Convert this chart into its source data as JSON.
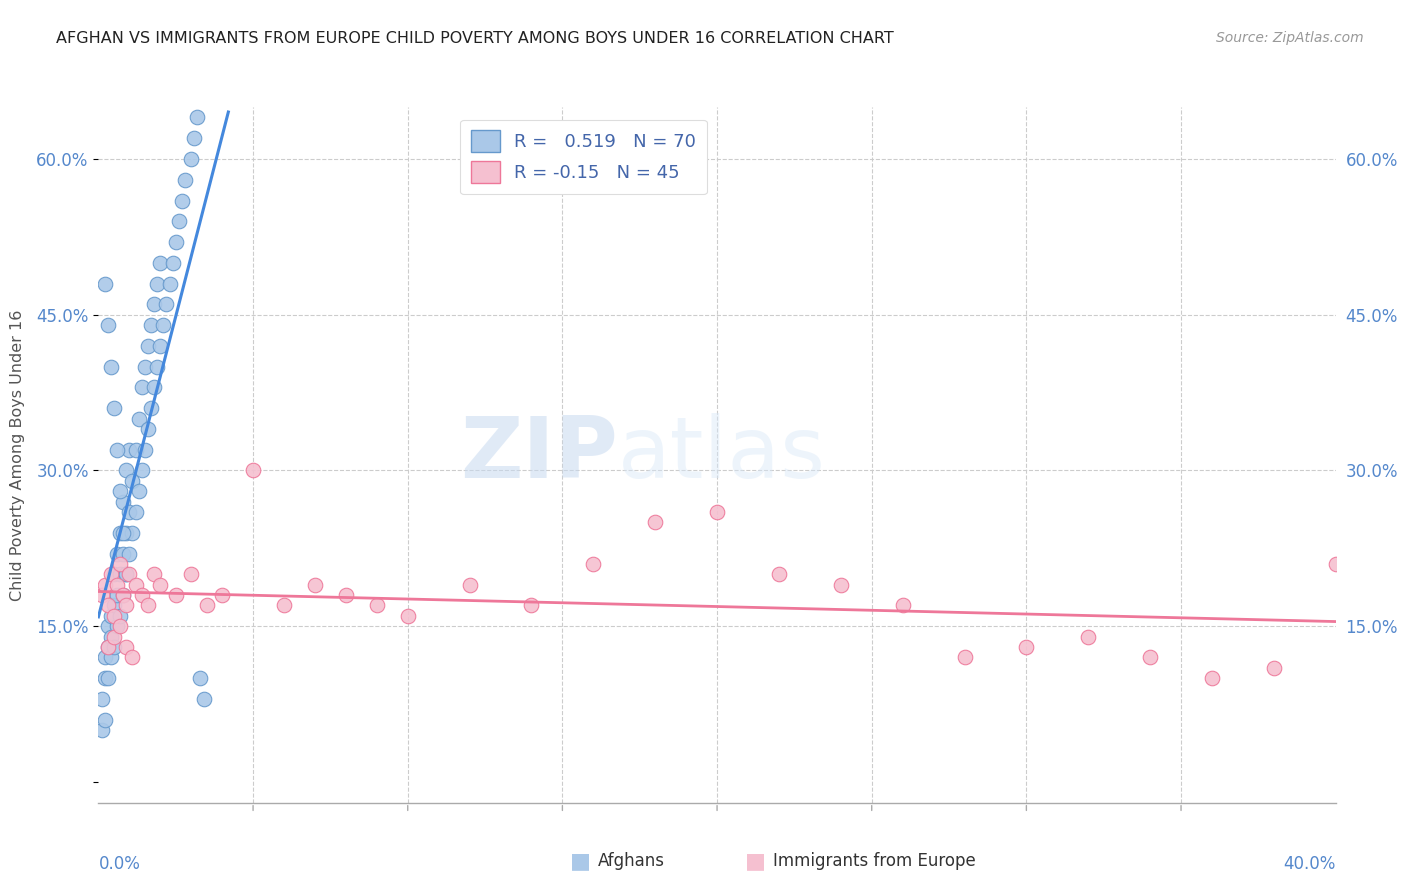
{
  "title": "Afghan vs Immigrants from Europe Child Poverty Among Boys Under 16 Correlation Chart",
  "title_display": "AFGHAN VS IMMIGRANTS FROM EUROPE CHILD POVERTY AMONG BOYS UNDER 16 CORRELATION CHART",
  "source": "Source: ZipAtlas.com",
  "ylabel": "Child Poverty Among Boys Under 16",
  "xlim": [
    0.0,
    0.4
  ],
  "ylim": [
    -0.02,
    0.65
  ],
  "yticks": [
    0.0,
    0.15,
    0.3,
    0.45,
    0.6
  ],
  "ytick_labels": [
    "",
    "15.0%",
    "30.0%",
    "45.0%",
    "60.0%"
  ],
  "xtick_left": "0.0%",
  "xtick_right": "40.0%",
  "afghans_color": "#aac8e8",
  "afghans_edge_color": "#6699cc",
  "europe_color": "#f5c0d0",
  "europe_edge_color": "#ee7799",
  "trend_afghan_color": "#4488dd",
  "trend_europe_color": "#ee7799",
  "label_color": "#5588cc",
  "R_afghan": 0.519,
  "N_afghan": 70,
  "R_europe": -0.15,
  "N_europe": 45,
  "legend_labels": [
    "Afghans",
    "Immigrants from Europe"
  ],
  "watermark_zip": "ZIP",
  "watermark_atlas": "atlas",
  "afghans_x": [
    0.001,
    0.002,
    0.002,
    0.003,
    0.003,
    0.003,
    0.004,
    0.004,
    0.004,
    0.005,
    0.005,
    0.005,
    0.006,
    0.006,
    0.006,
    0.007,
    0.007,
    0.007,
    0.008,
    0.008,
    0.008,
    0.009,
    0.009,
    0.009,
    0.01,
    0.01,
    0.01,
    0.011,
    0.011,
    0.012,
    0.012,
    0.013,
    0.013,
    0.014,
    0.014,
    0.015,
    0.015,
    0.016,
    0.016,
    0.017,
    0.017,
    0.018,
    0.018,
    0.019,
    0.019,
    0.02,
    0.02,
    0.021,
    0.022,
    0.023,
    0.024,
    0.025,
    0.026,
    0.027,
    0.028,
    0.03,
    0.031,
    0.032,
    0.033,
    0.034,
    0.002,
    0.003,
    0.004,
    0.005,
    0.006,
    0.007,
    0.008,
    0.009,
    0.001,
    0.002
  ],
  "afghans_y": [
    0.08,
    0.1,
    0.12,
    0.1,
    0.13,
    0.15,
    0.12,
    0.14,
    0.16,
    0.13,
    0.17,
    0.2,
    0.15,
    0.18,
    0.22,
    0.16,
    0.2,
    0.24,
    0.18,
    0.22,
    0.27,
    0.2,
    0.24,
    0.3,
    0.22,
    0.26,
    0.32,
    0.24,
    0.29,
    0.26,
    0.32,
    0.28,
    0.35,
    0.3,
    0.38,
    0.32,
    0.4,
    0.34,
    0.42,
    0.36,
    0.44,
    0.38,
    0.46,
    0.4,
    0.48,
    0.42,
    0.5,
    0.44,
    0.46,
    0.48,
    0.5,
    0.52,
    0.54,
    0.56,
    0.58,
    0.6,
    0.62,
    0.64,
    0.1,
    0.08,
    0.48,
    0.44,
    0.4,
    0.36,
    0.32,
    0.28,
    0.24,
    0.2,
    0.05,
    0.06
  ],
  "europe_x": [
    0.001,
    0.002,
    0.003,
    0.004,
    0.005,
    0.006,
    0.007,
    0.008,
    0.009,
    0.01,
    0.012,
    0.014,
    0.016,
    0.018,
    0.02,
    0.025,
    0.03,
    0.035,
    0.04,
    0.05,
    0.06,
    0.07,
    0.08,
    0.09,
    0.1,
    0.12,
    0.14,
    0.16,
    0.18,
    0.2,
    0.22,
    0.24,
    0.26,
    0.28,
    0.3,
    0.32,
    0.34,
    0.36,
    0.38,
    0.4,
    0.003,
    0.005,
    0.007,
    0.009,
    0.011
  ],
  "europe_y": [
    0.18,
    0.19,
    0.17,
    0.2,
    0.16,
    0.19,
    0.21,
    0.18,
    0.17,
    0.2,
    0.19,
    0.18,
    0.17,
    0.2,
    0.19,
    0.18,
    0.2,
    0.17,
    0.18,
    0.3,
    0.17,
    0.19,
    0.18,
    0.17,
    0.16,
    0.19,
    0.17,
    0.21,
    0.25,
    0.26,
    0.2,
    0.19,
    0.17,
    0.12,
    0.13,
    0.14,
    0.12,
    0.1,
    0.11,
    0.21,
    0.13,
    0.14,
    0.15,
    0.13,
    0.12
  ]
}
